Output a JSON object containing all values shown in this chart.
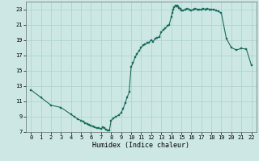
{
  "xlabel": "Humidex (Indice chaleur)",
  "bg_color": "#cde8e4",
  "grid_color": "#b0d4cf",
  "line_color": "#1e6b5e",
  "marker_color": "#1e6b5e",
  "xlim": [
    -0.5,
    22.5
  ],
  "ylim": [
    7,
    24
  ],
  "yticks": [
    7,
    9,
    11,
    13,
    15,
    17,
    19,
    21,
    23
  ],
  "xticks": [
    0,
    1,
    2,
    3,
    4,
    5,
    6,
    7,
    8,
    9,
    10,
    11,
    12,
    13,
    14,
    15,
    16,
    17,
    18,
    19,
    20,
    21,
    22
  ],
  "x": [
    0,
    1,
    2,
    3,
    4,
    4.33,
    4.67,
    5,
    5.2,
    5.4,
    5.6,
    5.8,
    6,
    6.2,
    6.4,
    6.6,
    6.8,
    7,
    7.17,
    7.33,
    7.5,
    7.67,
    7.83,
    8,
    8.25,
    8.5,
    8.75,
    9,
    9.2,
    9.4,
    9.6,
    9.8,
    10,
    10.2,
    10.4,
    10.6,
    10.8,
    11,
    11.2,
    11.4,
    11.6,
    11.8,
    12,
    12.2,
    12.4,
    12.6,
    12.8,
    13,
    13.2,
    13.4,
    13.6,
    13.8,
    14,
    14.1,
    14.2,
    14.3,
    14.4,
    14.5,
    14.6,
    14.7,
    14.8,
    14.9,
    15,
    15.2,
    15.4,
    15.6,
    15.8,
    16,
    16.2,
    16.4,
    16.6,
    16.8,
    17,
    17.2,
    17.4,
    17.6,
    17.8,
    18,
    18.25,
    18.5,
    18.75,
    19,
    19.5,
    20,
    20.5,
    21,
    21.5,
    22
  ],
  "y": [
    12.5,
    11.5,
    10.5,
    10.2,
    9.3,
    9.0,
    8.7,
    8.5,
    8.4,
    8.2,
    8.1,
    7.9,
    7.8,
    7.7,
    7.6,
    7.5,
    7.5,
    7.4,
    7.6,
    7.5,
    7.3,
    7.2,
    7.2,
    8.5,
    8.8,
    9.0,
    9.2,
    9.5,
    10.0,
    10.8,
    11.5,
    12.2,
    15.5,
    16.0,
    16.8,
    17.2,
    17.6,
    18.0,
    18.3,
    18.4,
    18.6,
    18.7,
    19.0,
    18.8,
    19.2,
    19.3,
    19.4,
    20.0,
    20.3,
    20.5,
    20.8,
    21.0,
    22.0,
    22.5,
    23.0,
    23.3,
    23.5,
    23.4,
    23.5,
    23.4,
    23.2,
    23.1,
    22.8,
    22.8,
    23.0,
    23.1,
    23.0,
    22.8,
    23.0,
    23.1,
    23.0,
    22.9,
    23.0,
    23.1,
    23.0,
    23.1,
    23.0,
    23.0,
    23.0,
    22.8,
    22.7,
    22.5,
    19.2,
    18.0,
    17.7,
    17.9,
    17.8,
    15.7
  ]
}
